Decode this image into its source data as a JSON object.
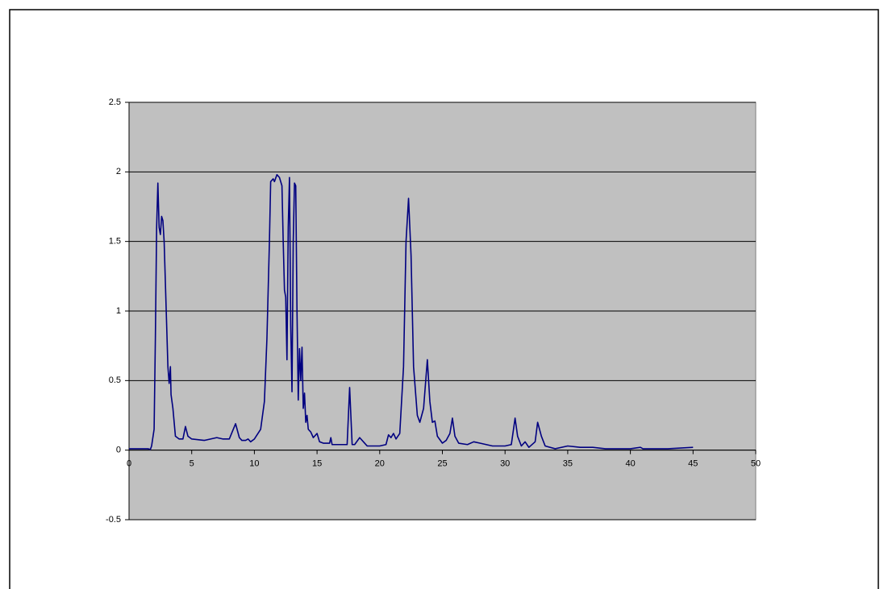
{
  "chart_data": {
    "type": "line",
    "x": [
      0,
      1.5,
      1.7,
      1.8,
      2.0,
      2.1,
      2.2,
      2.3,
      2.4,
      2.5,
      2.6,
      2.7,
      2.8,
      2.9,
      3.0,
      3.1,
      3.2,
      3.3,
      3.35,
      3.5,
      3.6,
      3.7,
      4.0,
      4.3,
      4.5,
      4.7,
      5.0,
      6.0,
      7.0,
      7.5,
      8.0,
      8.5,
      8.8,
      9.0,
      9.3,
      9.5,
      9.7,
      10.0,
      10.5,
      10.8,
      11.0,
      11.2,
      11.3,
      11.5,
      11.6,
      11.8,
      12.0,
      12.2,
      12.3,
      12.4,
      12.5,
      12.6,
      12.7,
      12.8,
      12.9,
      13.0,
      13.1,
      13.2,
      13.3,
      13.4,
      13.5,
      13.6,
      13.7,
      13.8,
      13.9,
      14.0,
      14.1,
      14.2,
      14.3,
      14.5,
      14.7,
      15.0,
      15.2,
      15.5,
      16.0,
      16.1,
      16.2,
      17.0,
      17.4,
      17.6,
      17.8,
      18.0,
      18.4,
      18.8,
      19.0,
      20.0,
      20.5,
      20.7,
      20.9,
      21.1,
      21.3,
      21.6,
      21.9,
      22.1,
      22.3,
      22.5,
      22.7,
      23.0,
      23.2,
      23.5,
      23.8,
      24.0,
      24.2,
      24.4,
      24.6,
      25.0,
      25.3,
      25.6,
      25.8,
      26.0,
      26.3,
      27.0,
      27.5,
      28.0,
      29.0,
      30.0,
      30.5,
      30.8,
      31.0,
      31.3,
      31.6,
      31.9,
      32.4,
      32.6,
      32.9,
      33.2,
      34.0,
      35.0,
      36.0,
      37.0,
      38.0,
      40.0,
      40.8,
      41.0,
      43.0,
      45.0
    ],
    "values": [
      0.01,
      0.01,
      0.005,
      0.03,
      0.15,
      0.8,
      1.6,
      1.92,
      1.6,
      1.55,
      1.68,
      1.65,
      1.5,
      1.2,
      0.9,
      0.6,
      0.48,
      0.6,
      0.4,
      0.3,
      0.2,
      0.1,
      0.08,
      0.08,
      0.17,
      0.1,
      0.08,
      0.07,
      0.09,
      0.08,
      0.08,
      0.19,
      0.09,
      0.07,
      0.07,
      0.08,
      0.06,
      0.08,
      0.15,
      0.35,
      0.8,
      1.5,
      1.93,
      1.95,
      1.93,
      1.98,
      1.96,
      1.9,
      1.5,
      1.15,
      1.1,
      0.65,
      1.6,
      1.96,
      0.9,
      0.42,
      1.5,
      1.92,
      1.9,
      1.0,
      0.36,
      0.73,
      0.5,
      0.74,
      0.3,
      0.41,
      0.2,
      0.25,
      0.15,
      0.13,
      0.09,
      0.12,
      0.06,
      0.05,
      0.05,
      0.09,
      0.04,
      0.04,
      0.04,
      0.45,
      0.04,
      0.04,
      0.09,
      0.05,
      0.03,
      0.03,
      0.04,
      0.11,
      0.09,
      0.12,
      0.08,
      0.12,
      0.6,
      1.5,
      1.81,
      1.4,
      0.6,
      0.25,
      0.2,
      0.3,
      0.65,
      0.35,
      0.2,
      0.21,
      0.1,
      0.05,
      0.07,
      0.12,
      0.23,
      0.1,
      0.05,
      0.04,
      0.06,
      0.05,
      0.03,
      0.03,
      0.04,
      0.23,
      0.1,
      0.03,
      0.06,
      0.02,
      0.06,
      0.2,
      0.1,
      0.03,
      0.01,
      0.03,
      0.02,
      0.02,
      0.01,
      0.01,
      0.02,
      0.01,
      0.01,
      0.02
    ],
    "color": "#000080",
    "xlim": [
      0,
      50
    ],
    "xticks": [
      0,
      5,
      10,
      15,
      20,
      25,
      30,
      35,
      40,
      45,
      50
    ],
    "ylim": [
      -0.5,
      2.5
    ],
    "yticks": [
      -0.5,
      0,
      0.5,
      1,
      1.5,
      2,
      2.5
    ],
    "grid": true
  }
}
